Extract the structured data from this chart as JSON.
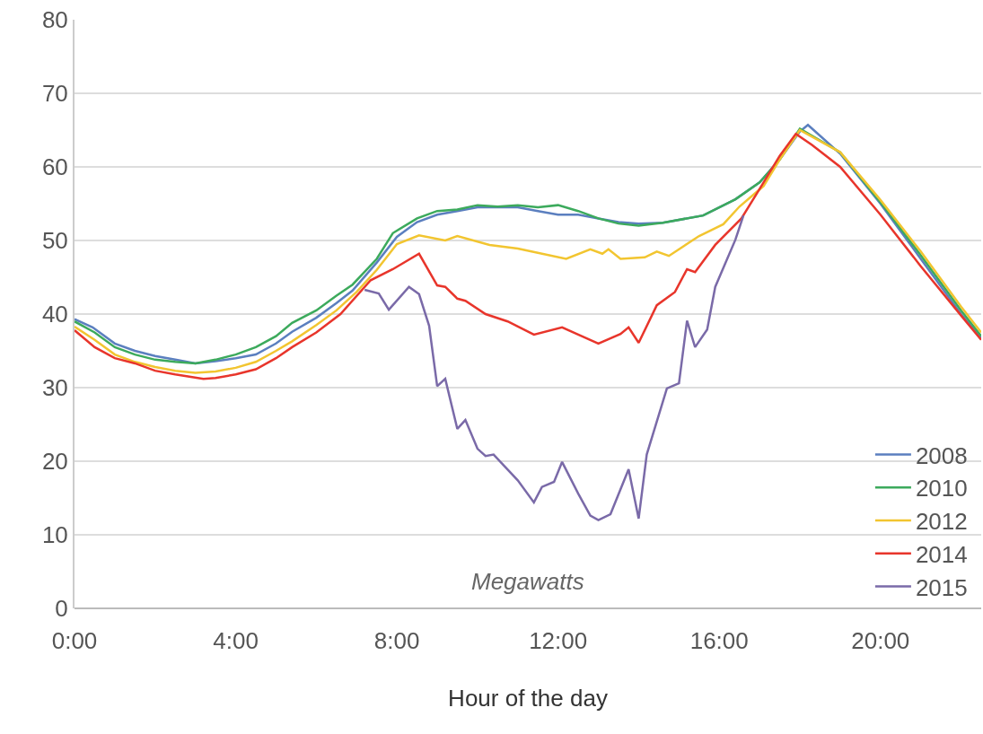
{
  "chart_data": {
    "type": "line",
    "xlabel": "Hour of the day",
    "ylabel": "Megawatts",
    "xlim": [
      0,
      22.5
    ],
    "ylim": [
      0,
      80
    ],
    "xticks": [
      {
        "value": 0,
        "label": "0:00"
      },
      {
        "value": 4,
        "label": "4:00"
      },
      {
        "value": 8,
        "label": "8:00"
      },
      {
        "value": 12,
        "label": "12:00"
      },
      {
        "value": 16,
        "label": "16:00"
      },
      {
        "value": 20,
        "label": "20:00"
      }
    ],
    "yticks": [
      0,
      10,
      20,
      30,
      40,
      50,
      60,
      70,
      80
    ],
    "grid": "y",
    "legend": "bottom right",
    "marker": "none",
    "line_style": "solid",
    "series": [
      {
        "name": "2008",
        "color": "#5b7fbf",
        "x": [
          0,
          0.45,
          1,
          1.5,
          2,
          2.5,
          3,
          3.5,
          4,
          4.5,
          5,
          5.4,
          6,
          6.5,
          6.9,
          7.5,
          8,
          8.5,
          9,
          9.5,
          10,
          10.5,
          11,
          11.5,
          12,
          12.5,
          13,
          13.5,
          14,
          14.6,
          15.6,
          16.4,
          17,
          17.5,
          18,
          18.2,
          19,
          20,
          21,
          22,
          22.5
        ],
        "values": [
          39.3,
          38.2,
          36,
          35,
          34.3,
          33.8,
          33.3,
          33.6,
          34,
          34.5,
          36,
          37.6,
          39.5,
          41.5,
          43.2,
          47,
          50.5,
          52.5,
          53.5,
          54,
          54.5,
          54.5,
          54.5,
          54,
          53.5,
          53.5,
          53,
          52.5,
          52.3,
          52.4,
          53.4,
          55.6,
          57.9,
          61,
          64.8,
          65.7,
          61.8,
          55,
          47.5,
          40,
          36.7
        ]
      },
      {
        "name": "2010",
        "color": "#3caa5c",
        "x": [
          0,
          0.5,
          1,
          1.5,
          2,
          2.5,
          3,
          3.5,
          4,
          4.5,
          5,
          5.4,
          6,
          6.5,
          6.9,
          7.5,
          7.9,
          8.5,
          9,
          9.5,
          10,
          10.5,
          11,
          11.5,
          12,
          12.5,
          13,
          13.5,
          14,
          14.6,
          15.6,
          16.4,
          17,
          17.5,
          18,
          19,
          20,
          21,
          22,
          22.5
        ],
        "values": [
          39,
          37.5,
          35.5,
          34.5,
          33.8,
          33.5,
          33.3,
          33.8,
          34.5,
          35.5,
          37,
          38.8,
          40.5,
          42.5,
          44,
          47.5,
          51,
          53,
          54,
          54.2,
          54.8,
          54.6,
          54.8,
          54.5,
          54.8,
          54,
          53,
          52.3,
          52,
          52.4,
          53.4,
          55.6,
          57.9,
          61,
          65.2,
          62,
          55.2,
          48,
          40.5,
          37
        ]
      },
      {
        "name": "2012",
        "color": "#f2c530",
        "x": [
          0,
          0.5,
          1,
          1.5,
          2,
          2.5,
          3,
          3.5,
          4,
          4.5,
          5,
          5.4,
          6,
          6.5,
          7,
          7.5,
          8,
          8.55,
          9.2,
          9.5,
          10.3,
          11,
          12.2,
          12.8,
          13.1,
          13.25,
          13.55,
          14.15,
          14.45,
          14.75,
          15.5,
          16.1,
          16.5,
          17.1,
          17.5,
          18,
          19,
          20,
          21,
          22,
          22.5
        ],
        "values": [
          38.3,
          36.5,
          34.5,
          33.5,
          32.8,
          32.3,
          32,
          32.2,
          32.7,
          33.5,
          35,
          36.3,
          38.5,
          40.5,
          43,
          46,
          49.5,
          50.7,
          50,
          50.6,
          49.4,
          48.9,
          47.5,
          48.8,
          48.2,
          48.8,
          47.5,
          47.7,
          48.5,
          47.9,
          50.6,
          52.2,
          54.6,
          57.4,
          61,
          65,
          62,
          55.5,
          48.5,
          41,
          37.5
        ]
      },
      {
        "name": "2014",
        "color": "#e8352b",
        "x": [
          0,
          0.5,
          1,
          1.5,
          2,
          2.5,
          3.2,
          3.5,
          4,
          4.5,
          5,
          5.4,
          6,
          6.6,
          7.35,
          7.9,
          8.55,
          9,
          9.2,
          9.5,
          9.7,
          10.2,
          10.75,
          11.4,
          12.1,
          12.5,
          13,
          13.55,
          13.75,
          14,
          14.45,
          14.9,
          15.2,
          15.4,
          15.9,
          16.55,
          17,
          17.5,
          17.9,
          18.3,
          19,
          20,
          21,
          22,
          22.5
        ],
        "values": [
          37.8,
          35.5,
          34,
          33.3,
          32.3,
          31.8,
          31.2,
          31.3,
          31.8,
          32.5,
          34,
          35.5,
          37.5,
          40,
          44.6,
          46.1,
          48.2,
          43.9,
          43.7,
          42.1,
          41.8,
          40,
          39,
          37.2,
          38.2,
          37.2,
          36,
          37.3,
          38.2,
          36.1,
          41.2,
          43,
          46.1,
          45.7,
          49.4,
          53,
          57,
          61.5,
          64.5,
          63,
          60,
          53.5,
          46.5,
          39.8,
          36.5
        ]
      },
      {
        "name": "2015",
        "color": "#7a6aa8",
        "x": [
          7.2,
          7.55,
          7.8,
          8.3,
          8.55,
          8.8,
          9,
          9.2,
          9.5,
          9.7,
          10,
          10.2,
          10.4,
          11,
          11.4,
          11.6,
          11.9,
          12.1,
          12.5,
          12.8,
          13,
          13.3,
          13.75,
          14,
          14.2,
          14.7,
          15,
          15.2,
          15.4,
          15.7,
          15.9,
          16.4,
          16.6
        ],
        "values": [
          43.3,
          42.8,
          40.6,
          43.7,
          42.7,
          38.4,
          30.2,
          31.2,
          24.4,
          25.6,
          21.7,
          20.7,
          20.9,
          17.4,
          14.4,
          16.5,
          17.2,
          19.9,
          15.6,
          12.6,
          12,
          12.8,
          18.9,
          12.2,
          20.9,
          29.9,
          30.6,
          39.1,
          35.5,
          37.9,
          43.7,
          50.1,
          53.4
        ]
      }
    ]
  }
}
